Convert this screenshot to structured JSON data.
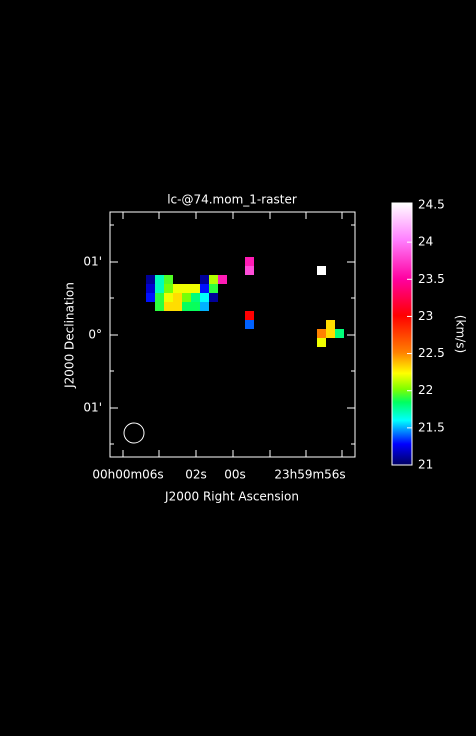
{
  "chart_data": {
    "type": "heatmap",
    "title": "lc-@74.mom_1-raster",
    "x_label": "J2000 Right Ascension",
    "y_label": "J2000 Declination",
    "xticks": [
      "00h00m06s",
      "02s",
      "00s",
      "23h59m56s"
    ],
    "yticks": [
      "01'",
      "0°",
      "01'"
    ],
    "z": [
      [
        null,
        null,
        null,
        null,
        null,
        null,
        null,
        null,
        null,
        null,
        null,
        23.6,
        null,
        null,
        null,
        null,
        null,
        null,
        null,
        null,
        null,
        null
      ],
      [
        null,
        null,
        null,
        null,
        null,
        null,
        null,
        null,
        null,
        null,
        null,
        23.8,
        null,
        null,
        null,
        null,
        null,
        null,
        null,
        24.5,
        null,
        null
      ],
      [
        21.1,
        21.7,
        21.95,
        null,
        null,
        null,
        21.1,
        22.1,
        23.6,
        null,
        null,
        null,
        null,
        null,
        null,
        null,
        null,
        null,
        null,
        null,
        null,
        null
      ],
      [
        21.2,
        21.7,
        22.0,
        22.2,
        22.2,
        22.2,
        21.3,
        21.9,
        null,
        null,
        null,
        null,
        null,
        null,
        null,
        null,
        null,
        null,
        null,
        null,
        null,
        null
      ],
      [
        21.3,
        21.9,
        22.2,
        22.3,
        22.0,
        21.8,
        21.6,
        21.1,
        null,
        null,
        null,
        null,
        null,
        null,
        null,
        null,
        null,
        null,
        null,
        null,
        null,
        null
      ],
      [
        null,
        21.9,
        22.3,
        22.3,
        21.85,
        21.85,
        21.5,
        null,
        null,
        null,
        null,
        null,
        null,
        null,
        null,
        null,
        null,
        null,
        null,
        null,
        null,
        null
      ],
      [
        null,
        null,
        null,
        null,
        null,
        null,
        null,
        null,
        null,
        null,
        null,
        23.0,
        null,
        null,
        null,
        null,
        null,
        null,
        null,
        null,
        null,
        null
      ],
      [
        null,
        null,
        null,
        null,
        null,
        null,
        null,
        null,
        null,
        null,
        null,
        21.4,
        null,
        null,
        null,
        null,
        null,
        null,
        null,
        null,
        22.3,
        null
      ],
      [
        null,
        null,
        null,
        null,
        null,
        null,
        null,
        null,
        null,
        null,
        null,
        null,
        null,
        null,
        null,
        null,
        null,
        null,
        null,
        22.5,
        22.3,
        21.8
      ],
      [
        null,
        null,
        null,
        null,
        null,
        null,
        null,
        null,
        null,
        null,
        null,
        null,
        null,
        null,
        null,
        null,
        null,
        null,
        null,
        22.2,
        null,
        null
      ]
    ],
    "colorbar": {
      "label": "(km/s)",
      "clim": [
        21,
        24.5
      ],
      "ticks": [
        21,
        21.5,
        22,
        22.5,
        23,
        23.5,
        24,
        24.5
      ]
    }
  }
}
